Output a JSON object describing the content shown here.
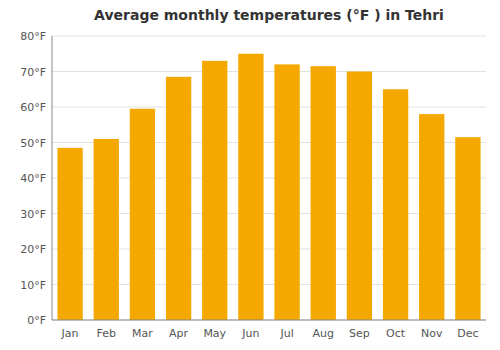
{
  "chart_data": {
    "type": "bar",
    "title": "Average monthly temperatures (°F ) in Tehri",
    "categories": [
      "Jan",
      "Feb",
      "Mar",
      "Apr",
      "May",
      "Jun",
      "Jul",
      "Aug",
      "Sep",
      "Oct",
      "Nov",
      "Dec"
    ],
    "values": [
      48.5,
      51.0,
      59.5,
      68.5,
      73.0,
      75.0,
      72.0,
      71.5,
      70.0,
      65.0,
      58.0,
      51.5
    ],
    "color": "#F5A800",
    "ylim": [
      0,
      80
    ],
    "yticks": [
      {
        "value": 0,
        "label": "0°F"
      },
      {
        "value": 10,
        "label": "10°F"
      },
      {
        "value": 20,
        "label": "20°F"
      },
      {
        "value": 30,
        "label": "30°F"
      },
      {
        "value": 40,
        "label": "40°F"
      },
      {
        "value": 50,
        "label": "50°F"
      },
      {
        "value": 60,
        "label": "60°F"
      },
      {
        "value": 70,
        "label": "70°F"
      },
      {
        "value": 80,
        "label": "80°F"
      }
    ],
    "grid": true
  }
}
